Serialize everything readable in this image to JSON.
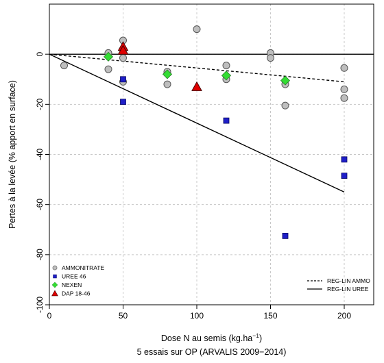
{
  "chart_data": {
    "type": "scatter",
    "xlabel": "Dose N au semis (kg.ha",
    "xlabel_sup": "−1",
    "xlabel_close": ")",
    "subtitle": "5 essais sur OP (ARVALIS 2009−2014)",
    "ylabel": "Pertes à la levée (% apport en surface)",
    "xlim": [
      0,
      220
    ],
    "ylim": [
      -100,
      20
    ],
    "x_ticks": [
      0,
      50,
      100,
      150,
      200
    ],
    "y_ticks": [
      0,
      -20,
      -40,
      -60,
      -80,
      -100
    ],
    "grid": true,
    "legend_position": "bottom-left",
    "series": [
      {
        "name": "AMMONITRATE",
        "marker": "circle",
        "color": "#bebebe",
        "points": [
          [
            10,
            -4.5
          ],
          [
            40,
            0.5
          ],
          [
            40,
            -6
          ],
          [
            50,
            5.5
          ],
          [
            50,
            -1.5
          ],
          [
            50,
            -11
          ],
          [
            80,
            -7
          ],
          [
            80,
            -12
          ],
          [
            100,
            10
          ],
          [
            120,
            -4.5
          ],
          [
            120,
            -10
          ],
          [
            150,
            0.5
          ],
          [
            150,
            -1.5
          ],
          [
            160,
            -12
          ],
          [
            160,
            -20.5
          ],
          [
            200,
            -5.5
          ],
          [
            200,
            -14
          ],
          [
            200,
            -17.5
          ]
        ]
      },
      {
        "name": "UREE 46",
        "marker": "square",
        "color": "#1f1fc8",
        "points": [
          [
            50,
            -10
          ],
          [
            50,
            -19
          ],
          [
            120,
            -26.5
          ],
          [
            160,
            -72.5
          ],
          [
            200,
            -42
          ],
          [
            200,
            -48.5
          ]
        ]
      },
      {
        "name": "NEXEN",
        "marker": "diamond",
        "color": "#33dd33",
        "points": [
          [
            40,
            -1
          ],
          [
            80,
            -8
          ],
          [
            120,
            -8.5
          ],
          [
            160,
            -10.5
          ]
        ]
      },
      {
        "name": "DAP 18-46",
        "marker": "triangle",
        "color": "#e00000",
        "points": [
          [
            50,
            3
          ],
          [
            50,
            1.5
          ],
          [
            100,
            -13
          ]
        ]
      }
    ],
    "regression_lines": [
      {
        "name": "REG-LIN AMMO",
        "style": "dashed",
        "x": [
          0,
          200
        ],
        "y": [
          0,
          -11
        ]
      },
      {
        "name": "REG-LIN UREE",
        "style": "solid",
        "x": [
          0,
          200
        ],
        "y": [
          0,
          -55
        ]
      }
    ],
    "reference_line_y": 0
  }
}
